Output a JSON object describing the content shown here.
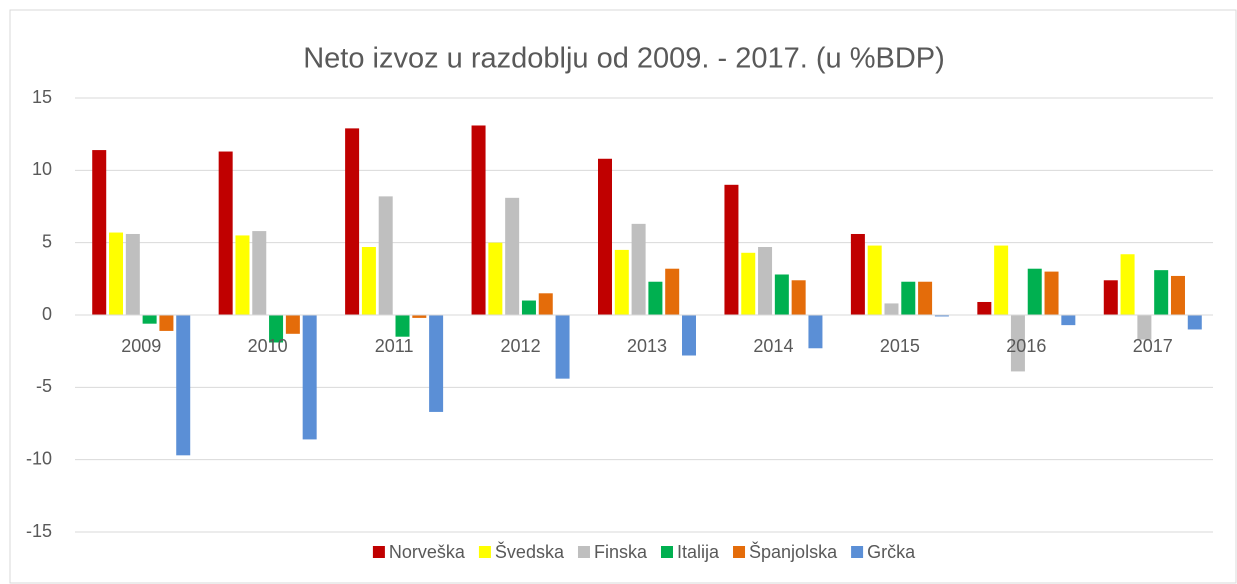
{
  "chart_data": {
    "type": "bar",
    "title": "Neto izvoz u razdoblju od 2009. - 2017. (u %BDP)",
    "categories": [
      "2009",
      "2010",
      "2011",
      "2012",
      "2013",
      "2014",
      "2015",
      "2016",
      "2017"
    ],
    "series": [
      {
        "name": "Norveška",
        "color": "#c00000",
        "values": [
          11.4,
          11.3,
          12.9,
          13.1,
          10.8,
          9.0,
          5.6,
          0.9,
          2.4
        ]
      },
      {
        "name": "Švedska",
        "color": "#ffff00",
        "values": [
          5.7,
          5.5,
          4.7,
          5.0,
          4.5,
          4.3,
          4.8,
          4.8,
          4.2
        ]
      },
      {
        "name": "Finska",
        "color": "#bfbfbf",
        "values": [
          5.6,
          5.8,
          8.2,
          8.1,
          6.3,
          4.7,
          0.8,
          -3.9,
          -1.7
        ]
      },
      {
        "name": "Italija",
        "color": "#00b050",
        "values": [
          -0.6,
          -1.9,
          -1.5,
          1.0,
          2.3,
          2.8,
          2.3,
          3.2,
          3.1
        ]
      },
      {
        "name": "Španjolska",
        "color": "#e46c0a",
        "values": [
          -1.1,
          -1.3,
          -0.2,
          1.5,
          3.2,
          2.4,
          2.3,
          3.0,
          2.7
        ]
      },
      {
        "name": "Grčka",
        "color": "#5b8fd6",
        "values": [
          -9.7,
          -8.6,
          -6.7,
          -4.4,
          -2.8,
          -2.3,
          -0.1,
          -0.7,
          -1.0
        ]
      }
    ],
    "ylim": [
      -15,
      15
    ],
    "yticks": [
      -15,
      -10,
      -5,
      0,
      5,
      10,
      15
    ],
    "grid": true,
    "legend": "bottom"
  }
}
